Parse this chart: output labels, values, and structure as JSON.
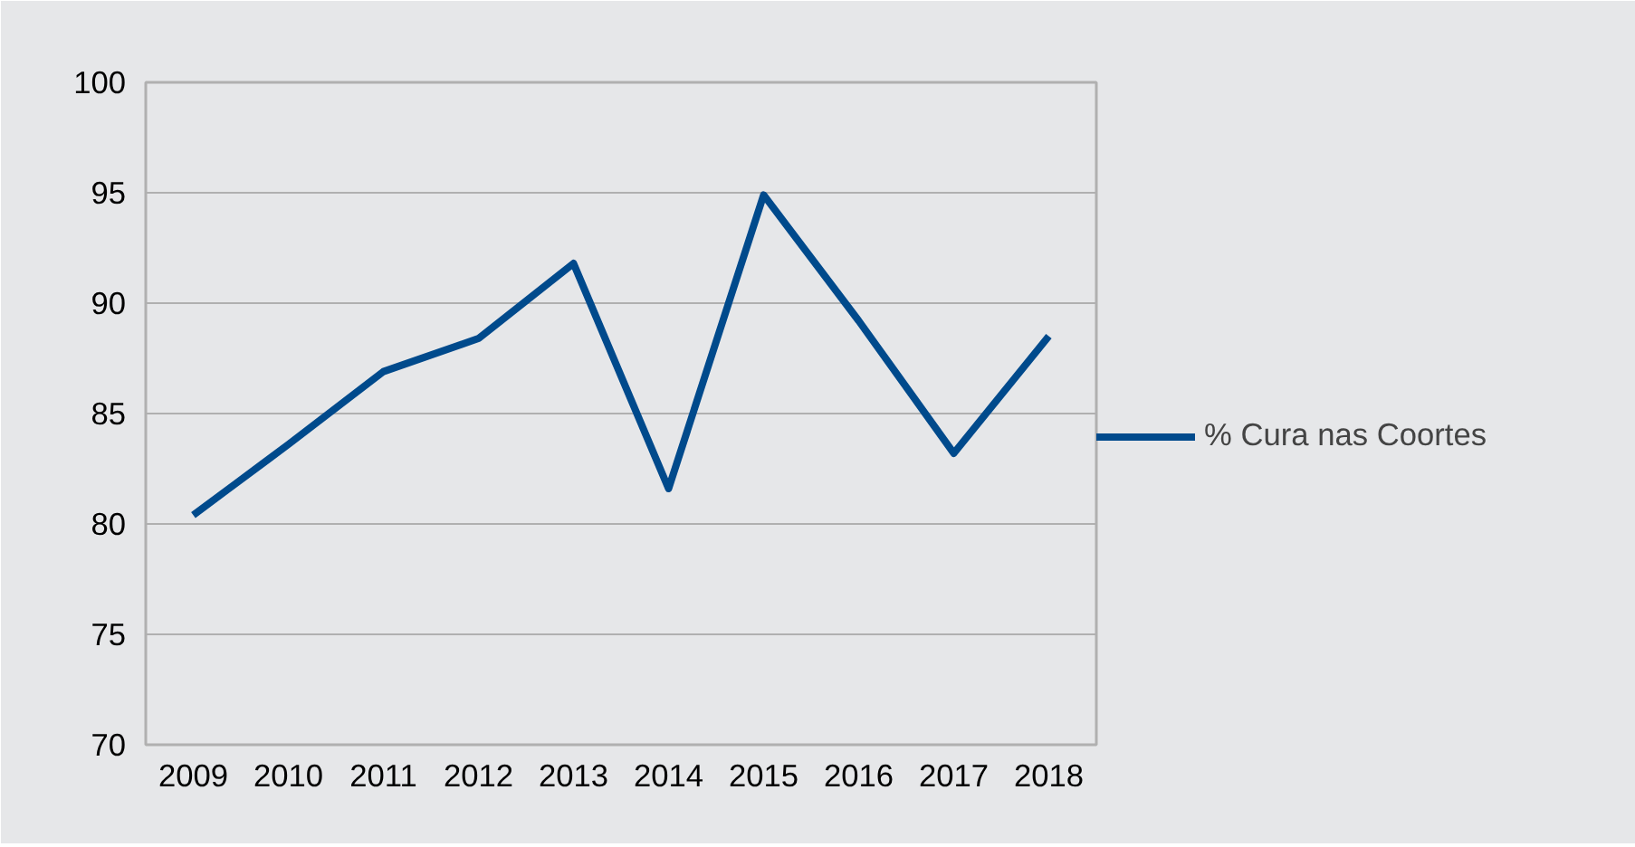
{
  "chart_data": {
    "type": "line",
    "categories": [
      "2009",
      "2010",
      "2011",
      "2012",
      "2013",
      "2014",
      "2015",
      "2016",
      "2017",
      "2018"
    ],
    "series": [
      {
        "name": "% Cura nas Coortes",
        "color": "#004a8c",
        "values": [
          80.4,
          83.6,
          86.9,
          88.4,
          91.8,
          81.6,
          94.9,
          89.2,
          83.2,
          88.5
        ]
      }
    ],
    "ylim": [
      70,
      100
    ],
    "yticks": [
      70,
      75,
      80,
      85,
      90,
      95,
      100
    ],
    "grid": "y",
    "legend": "right",
    "marker": "none",
    "line_style": "solid"
  }
}
